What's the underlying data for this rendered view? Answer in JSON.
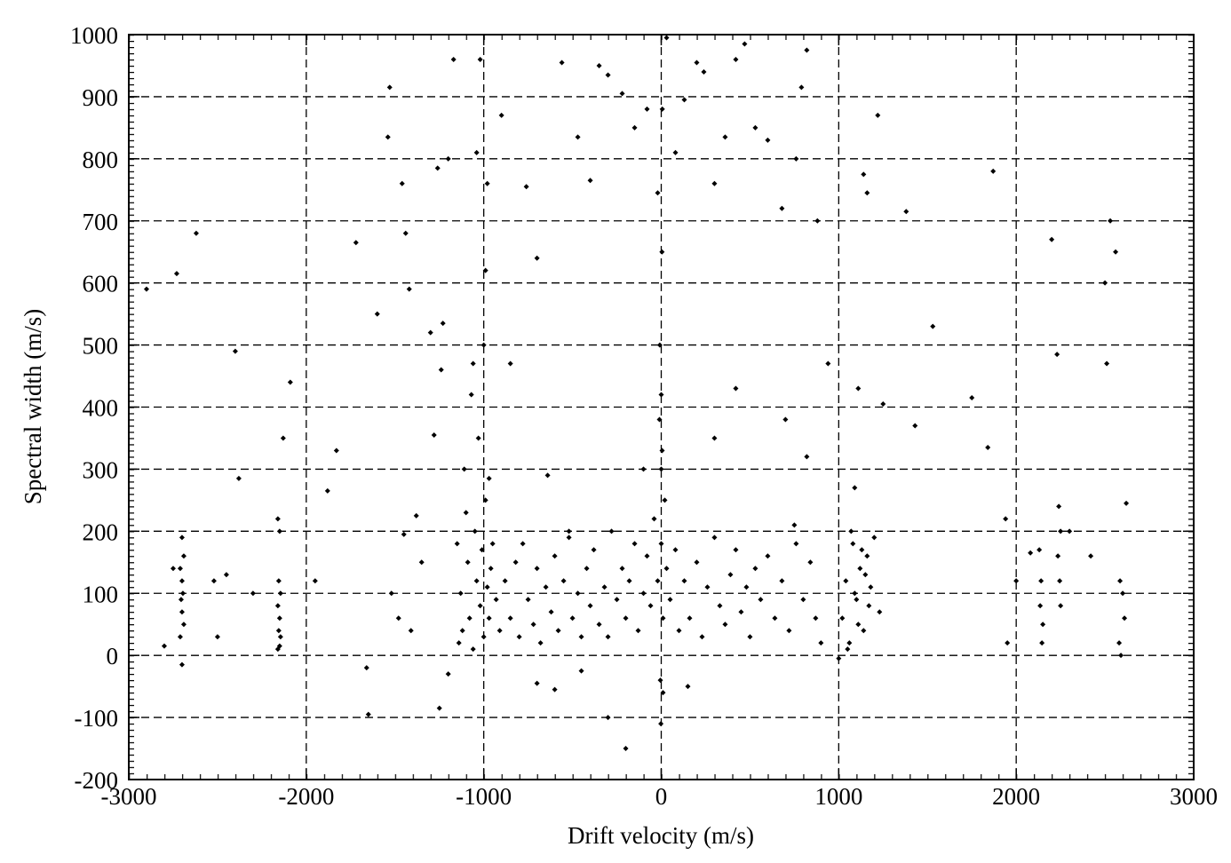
{
  "chart_data": {
    "type": "scatter",
    "xlabel": "Drift velocity (m/s)",
    "ylabel": "Spectral width (m/s)",
    "color": "#000000",
    "grid": true,
    "xlim": [
      -3000,
      3000
    ],
    "xticks": [
      -3000,
      -2000,
      -1000,
      0,
      1000,
      2000,
      3000
    ],
    "ylim": [
      -200,
      1000
    ],
    "yticks": [
      -200,
      -100,
      0,
      100,
      200,
      300,
      400,
      500,
      600,
      700,
      800,
      900,
      1000
    ],
    "x": [
      -2700,
      -2690,
      -2710,
      -2700,
      -2695,
      -2705,
      -2700,
      -2690,
      -2710,
      -2700,
      -2160,
      -2150,
      -2155,
      -2145,
      -2160,
      -2150,
      -2155,
      -2145,
      -2150,
      -2160,
      2130,
      2140,
      2135,
      2150,
      2145,
      2240,
      2250,
      2235,
      2245,
      2250,
      2580,
      2590,
      2585,
      2600,
      2610,
      -2800,
      -2750,
      -2520,
      -2500,
      -2450,
      -2900,
      -2730,
      -2620,
      -2400,
      -2380,
      -2300,
      -2130,
      -2090,
      -1950,
      -1880,
      -1830,
      -1720,
      -1650,
      -1600,
      -1540,
      -1530,
      -1460,
      -1440,
      -1420,
      -1380,
      -1520,
      -1480,
      -1450,
      -1410,
      -1350,
      -1280,
      -1230,
      -1200,
      -1260,
      -1240,
      -1150,
      -1130,
      -1120,
      -1100,
      -1090,
      -1080,
      -1060,
      -1050,
      -1040,
      -1020,
      -1010,
      -1000,
      -990,
      -980,
      -970,
      -960,
      -1140,
      -1110,
      -1070,
      -1030,
      -1000,
      -990,
      -980,
      -1020,
      -1040,
      -1060,
      -970,
      -950,
      -930,
      -910,
      -880,
      -850,
      -820,
      -800,
      -780,
      -750,
      -720,
      -700,
      -680,
      -650,
      -620,
      -600,
      -580,
      -550,
      -520,
      -500,
      -470,
      -450,
      -420,
      -400,
      -380,
      -350,
      -320,
      -300,
      -280,
      -250,
      -220,
      -200,
      -180,
      -150,
      -130,
      -100,
      -80,
      -60,
      -40,
      -20,
      0,
      10,
      20,
      30,
      -10,
      0,
      5,
      -5,
      10,
      0,
      -8,
      4,
      -2,
      6,
      50,
      80,
      100,
      130,
      160,
      200,
      230,
      260,
      300,
      330,
      360,
      390,
      420,
      450,
      480,
      500,
      530,
      560,
      600,
      640,
      680,
      720,
      760,
      800,
      840,
      870,
      900,
      700,
      750,
      820,
      1020,
      1040,
      1060,
      1080,
      1100,
      1120,
      1140,
      1160,
      1180,
      1200,
      1050,
      1070,
      1090,
      1110,
      1130,
      1150,
      1170,
      1090,
      1110,
      1230,
      1250,
      1380,
      1430,
      1530,
      1750,
      1840,
      1870,
      1940,
      1950,
      2000,
      2080,
      2200,
      2230,
      2300,
      2420,
      2500,
      2510,
      2530,
      2560,
      2620,
      -1170,
      -900,
      -850,
      -760,
      -700,
      -640,
      -560,
      -520,
      -470,
      -400,
      -350,
      -300,
      -220,
      -150,
      -80,
      -20,
      30,
      80,
      130,
      200,
      240,
      300,
      360,
      420,
      470,
      530,
      600,
      680,
      760,
      820,
      790,
      880,
      940,
      1000,
      1140,
      1160,
      1220,
      -200,
      -300,
      -600,
      -100,
      150,
      300,
      -450,
      -700,
      -1200,
      -1300,
      -1660,
      -1250,
      420
    ],
    "values": [
      190,
      160,
      140,
      120,
      100,
      90,
      70,
      50,
      30,
      -15,
      220,
      200,
      120,
      100,
      80,
      60,
      40,
      30,
      15,
      10,
      170,
      120,
      80,
      50,
      20,
      240,
      200,
      160,
      120,
      80,
      20,
      0,
      120,
      100,
      60,
      15,
      140,
      120,
      30,
      130,
      590,
      615,
      680,
      490,
      285,
      100,
      350,
      440,
      120,
      265,
      330,
      665,
      -95,
      550,
      835,
      915,
      760,
      680,
      590,
      225,
      100,
      60,
      195,
      40,
      150,
      355,
      535,
      800,
      785,
      460,
      180,
      100,
      40,
      230,
      150,
      60,
      10,
      200,
      120,
      80,
      170,
      30,
      250,
      110,
      60,
      140,
      20,
      300,
      420,
      350,
      500,
      620,
      760,
      960,
      810,
      470,
      285,
      180,
      90,
      40,
      120,
      60,
      150,
      30,
      180,
      90,
      50,
      140,
      20,
      110,
      70,
      160,
      40,
      120,
      190,
      60,
      100,
      30,
      140,
      80,
      170,
      50,
      110,
      30,
      200,
      90,
      140,
      60,
      120,
      180,
      40,
      100,
      160,
      80,
      220,
      120,
      300,
      60,
      250,
      140,
      380,
      420,
      330,
      -40,
      -60,
      180,
      500,
      650,
      -110,
      880,
      90,
      170,
      40,
      120,
      60,
      150,
      30,
      110,
      190,
      80,
      50,
      130,
      170,
      70,
      110,
      30,
      140,
      90,
      160,
      60,
      120,
      40,
      180,
      90,
      150,
      60,
      20,
      380,
      210,
      320,
      60,
      120,
      20,
      180,
      90,
      140,
      40,
      160,
      110,
      190,
      10,
      200,
      100,
      50,
      170,
      130,
      80,
      270,
      430,
      70,
      405,
      715,
      370,
      530,
      415,
      335,
      780,
      220,
      20,
      120,
      165,
      670,
      485,
      200,
      160,
      600,
      470,
      700,
      650,
      245,
      960,
      870,
      470,
      755,
      640,
      290,
      955,
      200,
      835,
      765,
      950,
      935,
      905,
      850,
      880,
      745,
      995,
      810,
      895,
      955,
      940,
      760,
      835,
      960,
      985,
      850,
      830,
      720,
      800,
      975,
      915,
      700,
      470,
      -5,
      775,
      745,
      870,
      -150,
      -100,
      -55,
      300,
      -50,
      350,
      -25,
      -45,
      -30,
      520,
      -20,
      -85,
      430
    ]
  }
}
